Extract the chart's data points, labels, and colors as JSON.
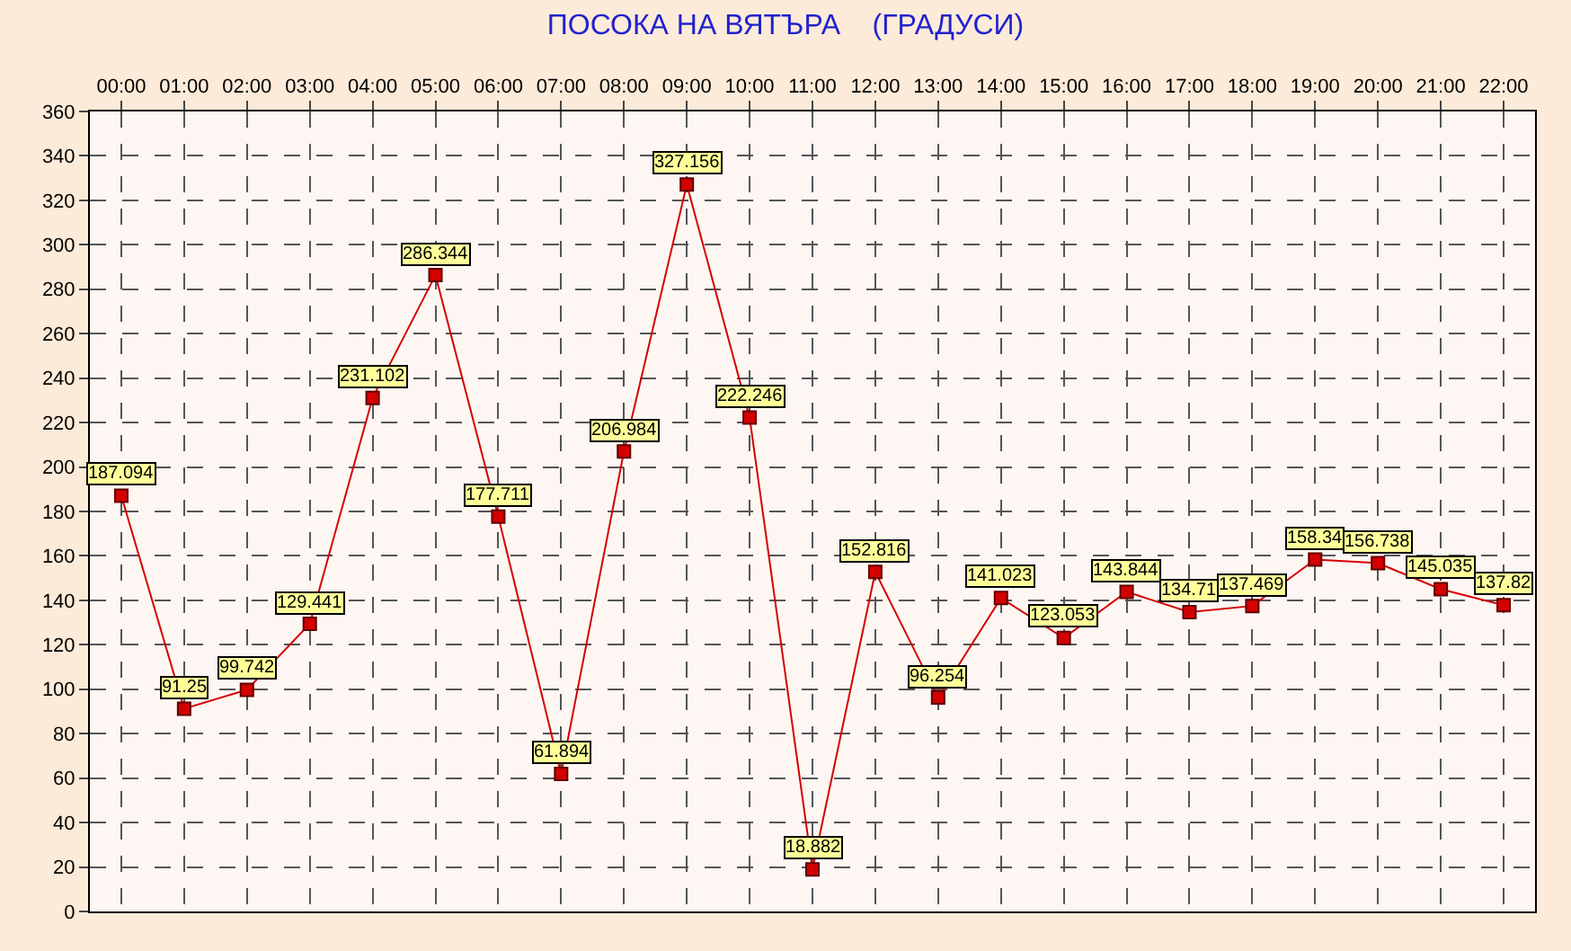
{
  "chart_data": {
    "type": "line",
    "title": "ПОСОКА НА ВЯТЪРА    (ГРАДУСИ)",
    "categories": [
      "00:00",
      "01:00",
      "02:00",
      "03:00",
      "04:00",
      "05:00",
      "06:00",
      "07:00",
      "08:00",
      "09:00",
      "10:00",
      "11:00",
      "12:00",
      "13:00",
      "14:00",
      "15:00",
      "16:00",
      "17:00",
      "18:00",
      "19:00",
      "20:00",
      "21:00",
      "22:00"
    ],
    "series": [
      {
        "color": "#d40000",
        "values": [
          187.094,
          91.25,
          99.742,
          129.441,
          231.102,
          286.344,
          177.711,
          61.894,
          206.984,
          327.156,
          222.246,
          18.882,
          152.816,
          96.254,
          141.023,
          123.053,
          143.844,
          134.71,
          137.469,
          158.34,
          156.738,
          145.035,
          137.82
        ]
      }
    ],
    "ylim": [
      0,
      360
    ],
    "yticks": [
      0,
      20,
      40,
      60,
      80,
      100,
      120,
      140,
      160,
      180,
      200,
      220,
      240,
      260,
      280,
      300,
      320,
      340,
      360
    ],
    "grid": true,
    "marker": "square",
    "line_style": "solid",
    "data_labels": true,
    "legend": false
  }
}
